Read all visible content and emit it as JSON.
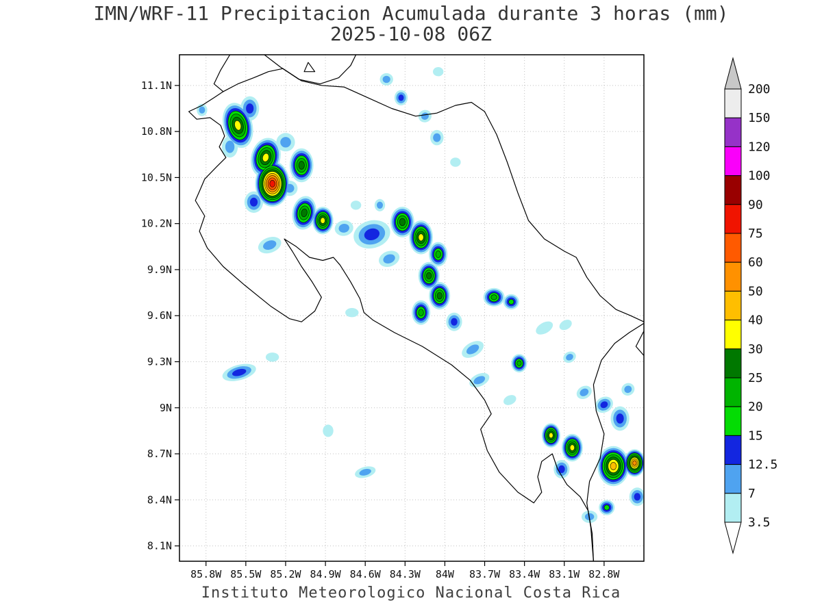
{
  "header": {
    "title_line1": "IMN/WRF-11 Precipitacion Acumulada durante 3 horas (mm)",
    "title_line2": "2025-10-08 06Z"
  },
  "footer": {
    "caption": "Instituto Meteorologico Nacional Costa Rica"
  },
  "colors": {
    "background": "#ffffff",
    "coastline": "#000000",
    "grid": "#c0c0c0",
    "frame": "#000000"
  },
  "chart_data": {
    "type": "heatmap",
    "title": "IMN/WRF-11 Precipitacion Acumulada durante 3 horas (mm)",
    "subtitle": "2025-10-08 06Z",
    "units": "mm",
    "grid": true,
    "x_axis": {
      "label": "",
      "range_lonW": [
        86.0,
        82.5
      ],
      "ticks": [
        {
          "label": "85.8W",
          "value": 85.8
        },
        {
          "label": "85.5W",
          "value": 85.5
        },
        {
          "label": "85.2W",
          "value": 85.2
        },
        {
          "label": "84.9W",
          "value": 84.9
        },
        {
          "label": "84.6W",
          "value": 84.6
        },
        {
          "label": "84.3W",
          "value": 84.3
        },
        {
          "label": "84W",
          "value": 84.0
        },
        {
          "label": "83.7W",
          "value": 83.7
        },
        {
          "label": "83.4W",
          "value": 83.4
        },
        {
          "label": "83.1W",
          "value": 83.1
        },
        {
          "label": "82.8W",
          "value": 82.8
        }
      ]
    },
    "y_axis": {
      "label": "",
      "range_lat": [
        8.0,
        11.3
      ],
      "ticks": [
        {
          "label": "11.1N",
          "value": 11.1
        },
        {
          "label": "10.8N",
          "value": 10.8
        },
        {
          "label": "10.5N",
          "value": 10.5
        },
        {
          "label": "10.2N",
          "value": 10.2
        },
        {
          "label": "9.9N",
          "value": 9.9
        },
        {
          "label": "9.6N",
          "value": 9.6
        },
        {
          "label": "9.3N",
          "value": 9.3
        },
        {
          "label": "9N",
          "value": 9.0
        },
        {
          "label": "8.7N",
          "value": 8.7
        },
        {
          "label": "8.4N",
          "value": 8.4
        },
        {
          "label": "8.1N",
          "value": 8.1
        }
      ]
    },
    "colorbar": {
      "position": "right",
      "levels": [
        3.5,
        7,
        12.5,
        15,
        20,
        25,
        30,
        40,
        50,
        60,
        75,
        90,
        100,
        120,
        150,
        200
      ],
      "band_colors": [
        "#b2eef2",
        "#4fa3f0",
        "#1326e0",
        "#04dc04",
        "#00b400",
        "#007800",
        "#ffff00",
        "#ffbe00",
        "#ff9100",
        "#ff5a00",
        "#f01400",
        "#990000",
        "#fa00fa",
        "#9632c8",
        "#ededed"
      ],
      "over_color": "#c8c8c8",
      "under_color": "#ffffff"
    },
    "coastlines": {
      "pacific_main": [
        [
          85.62,
          11.3
        ],
        [
          85.69,
          11.2
        ],
        [
          85.74,
          11.11
        ],
        [
          85.67,
          11.06
        ],
        [
          85.74,
          11.02
        ],
        [
          85.83,
          10.97
        ],
        [
          85.93,
          10.93
        ],
        [
          85.87,
          10.88
        ],
        [
          85.77,
          10.89
        ],
        [
          85.69,
          10.84
        ],
        [
          85.66,
          10.77
        ],
        [
          85.7,
          10.7
        ],
        [
          85.65,
          10.63
        ],
        [
          85.72,
          10.57
        ],
        [
          85.81,
          10.49
        ],
        [
          85.85,
          10.41
        ],
        [
          85.88,
          10.35
        ],
        [
          85.81,
          10.25
        ],
        [
          85.85,
          10.15
        ],
        [
          85.79,
          10.04
        ],
        [
          85.67,
          9.92
        ],
        [
          85.51,
          9.8
        ],
        [
          85.31,
          9.66
        ],
        [
          85.17,
          9.58
        ],
        [
          85.08,
          9.56
        ],
        [
          84.98,
          9.63
        ],
        [
          84.93,
          9.72
        ],
        [
          85.0,
          9.82
        ],
        [
          85.08,
          9.92
        ],
        [
          85.15,
          10.02
        ],
        [
          85.21,
          10.1
        ],
        [
          85.12,
          10.05
        ],
        [
          85.02,
          9.98
        ],
        [
          84.92,
          9.96
        ],
        [
          84.84,
          9.98
        ],
        [
          84.79,
          9.93
        ],
        [
          84.71,
          9.82
        ],
        [
          84.64,
          9.71
        ],
        [
          84.61,
          9.62
        ],
        [
          84.54,
          9.57
        ],
        [
          84.38,
          9.49
        ],
        [
          84.17,
          9.4
        ],
        [
          83.95,
          9.28
        ],
        [
          83.81,
          9.18
        ],
        [
          83.7,
          9.05
        ],
        [
          83.65,
          8.96
        ],
        [
          83.73,
          8.86
        ],
        [
          83.68,
          8.72
        ],
        [
          83.59,
          8.58
        ],
        [
          83.45,
          8.45
        ],
        [
          83.33,
          8.38
        ],
        [
          83.27,
          8.45
        ],
        [
          83.3,
          8.55
        ],
        [
          83.27,
          8.65
        ],
        [
          83.19,
          8.7
        ],
        [
          83.15,
          8.6
        ],
        [
          83.08,
          8.5
        ],
        [
          82.98,
          8.42
        ],
        [
          82.92,
          8.33
        ],
        [
          82.89,
          8.18
        ],
        [
          82.88,
          8.0
        ]
      ],
      "caribbean": [
        [
          83.7,
          10.93
        ],
        [
          83.61,
          10.78
        ],
        [
          83.53,
          10.6
        ],
        [
          83.45,
          10.4
        ],
        [
          83.37,
          10.22
        ],
        [
          83.25,
          10.1
        ],
        [
          83.1,
          10.02
        ],
        [
          83.01,
          9.98
        ],
        [
          82.93,
          9.85
        ],
        [
          82.83,
          9.73
        ],
        [
          82.71,
          9.64
        ],
        [
          82.6,
          9.6
        ],
        [
          82.5,
          9.56
        ]
      ],
      "nicaragua_border_river": [
        [
          85.67,
          11.06
        ],
        [
          85.56,
          11.11
        ],
        [
          85.44,
          11.15
        ],
        [
          85.33,
          11.19
        ],
        [
          85.22,
          11.21
        ],
        [
          85.08,
          11.13
        ],
        [
          84.93,
          11.1
        ],
        [
          84.76,
          11.09
        ],
        [
          84.58,
          11.02
        ],
        [
          84.4,
          10.95
        ],
        [
          84.22,
          10.9
        ],
        [
          84.06,
          10.92
        ],
        [
          83.92,
          10.97
        ],
        [
          83.8,
          10.99
        ],
        [
          83.7,
          10.93
        ]
      ],
      "lake_shore": [
        [
          85.36,
          11.3
        ],
        [
          85.24,
          11.22
        ],
        [
          85.1,
          11.14
        ],
        [
          84.94,
          11.11
        ],
        [
          84.8,
          11.15
        ],
        [
          84.71,
          11.23
        ],
        [
          84.67,
          11.3
        ]
      ],
      "lake_island": [
        [
          85.03,
          11.25
        ],
        [
          84.98,
          11.19
        ],
        [
          85.06,
          11.19
        ],
        [
          85.03,
          11.25
        ]
      ],
      "panama_border": [
        [
          82.5,
          9.55
        ],
        [
          82.61,
          9.49
        ],
        [
          82.72,
          9.42
        ],
        [
          82.82,
          9.31
        ],
        [
          82.88,
          9.15
        ],
        [
          82.86,
          8.98
        ],
        [
          82.8,
          8.83
        ],
        [
          82.83,
          8.67
        ],
        [
          82.91,
          8.52
        ],
        [
          82.93,
          8.38
        ],
        [
          82.9,
          8.22
        ],
        [
          82.88,
          8.0
        ]
      ],
      "panama_caribbean": [
        [
          82.5,
          9.5
        ],
        [
          82.56,
          9.4
        ],
        [
          82.5,
          9.34
        ]
      ]
    },
    "precip_cells_format": [
      "lonW",
      "lat",
      "rx_deg",
      "ry_deg",
      "rotate_deg",
      "max_mm"
    ],
    "precip_cells": [
      [
        85.56,
        10.84,
        0.11,
        0.15,
        -15,
        30
      ],
      [
        85.47,
        10.95,
        0.07,
        0.08,
        0,
        12.5
      ],
      [
        85.62,
        10.7,
        0.06,
        0.07,
        0,
        7
      ],
      [
        85.35,
        10.63,
        0.11,
        0.13,
        15,
        30
      ],
      [
        85.3,
        10.46,
        0.13,
        0.15,
        0,
        75
      ],
      [
        85.08,
        10.58,
        0.09,
        0.11,
        0,
        25
      ],
      [
        85.44,
        10.34,
        0.07,
        0.07,
        0,
        12.5
      ],
      [
        85.06,
        10.27,
        0.09,
        0.11,
        10,
        25
      ],
      [
        84.92,
        10.22,
        0.08,
        0.09,
        0,
        30
      ],
      [
        85.32,
        10.06,
        0.09,
        0.05,
        -20,
        7
      ],
      [
        85.2,
        10.73,
        0.07,
        0.06,
        0,
        7
      ],
      [
        85.17,
        10.43,
        0.06,
        0.05,
        0,
        7
      ],
      [
        85.83,
        10.94,
        0.04,
        0.04,
        0,
        7
      ],
      [
        84.44,
        11.14,
        0.05,
        0.04,
        0,
        7
      ],
      [
        84.33,
        11.02,
        0.05,
        0.05,
        0,
        12.5
      ],
      [
        84.15,
        10.9,
        0.05,
        0.04,
        -20,
        7
      ],
      [
        84.06,
        10.76,
        0.05,
        0.05,
        0,
        7
      ],
      [
        84.05,
        11.19,
        0.04,
        0.03,
        0,
        3.5
      ],
      [
        83.92,
        10.6,
        0.04,
        0.03,
        0,
        3.5
      ],
      [
        84.76,
        10.17,
        0.07,
        0.05,
        -10,
        7
      ],
      [
        84.55,
        10.13,
        0.14,
        0.09,
        -15,
        12.5
      ],
      [
        84.32,
        10.21,
        0.09,
        0.1,
        0,
        25
      ],
      [
        84.18,
        10.11,
        0.09,
        0.11,
        0,
        30
      ],
      [
        84.05,
        10.0,
        0.07,
        0.08,
        0,
        20
      ],
      [
        84.49,
        10.32,
        0.04,
        0.04,
        0,
        7
      ],
      [
        84.67,
        10.32,
        0.04,
        0.03,
        0,
        3.5
      ],
      [
        84.42,
        9.97,
        0.08,
        0.05,
        -20,
        7
      ],
      [
        84.12,
        9.86,
        0.08,
        0.09,
        0,
        25
      ],
      [
        84.04,
        9.73,
        0.08,
        0.09,
        0,
        25
      ],
      [
        84.18,
        9.62,
        0.07,
        0.08,
        0,
        20
      ],
      [
        83.93,
        9.56,
        0.06,
        0.06,
        0,
        12.5
      ],
      [
        84.7,
        9.62,
        0.05,
        0.03,
        0,
        3.5
      ],
      [
        83.63,
        9.72,
        0.08,
        0.06,
        0,
        20
      ],
      [
        83.5,
        9.69,
        0.06,
        0.05,
        0,
        15
      ],
      [
        83.79,
        9.38,
        0.09,
        0.045,
        -30,
        7
      ],
      [
        83.74,
        9.18,
        0.08,
        0.04,
        -25,
        7
      ],
      [
        83.44,
        9.29,
        0.06,
        0.06,
        0,
        20
      ],
      [
        83.25,
        9.52,
        0.07,
        0.035,
        -30,
        3.5
      ],
      [
        83.09,
        9.54,
        0.05,
        0.03,
        -30,
        3.5
      ],
      [
        83.06,
        9.33,
        0.05,
        0.035,
        -30,
        7
      ],
      [
        82.95,
        9.1,
        0.06,
        0.04,
        -30,
        7
      ],
      [
        82.8,
        9.02,
        0.07,
        0.05,
        -30,
        12.5
      ],
      [
        83.51,
        9.05,
        0.05,
        0.03,
        -25,
        3.5
      ],
      [
        85.55,
        9.23,
        0.13,
        0.05,
        -15,
        12.5
      ],
      [
        85.3,
        9.33,
        0.05,
        0.03,
        0,
        3.5
      ],
      [
        84.88,
        8.85,
        0.04,
        0.04,
        0,
        3.5
      ],
      [
        84.6,
        8.58,
        0.08,
        0.035,
        -15,
        7
      ],
      [
        83.2,
        8.82,
        0.07,
        0.08,
        0,
        30
      ],
      [
        83.04,
        8.74,
        0.08,
        0.09,
        0,
        30
      ],
      [
        83.12,
        8.6,
        0.06,
        0.06,
        0,
        12.5
      ],
      [
        82.73,
        8.62,
        0.12,
        0.13,
        0,
        40
      ],
      [
        82.57,
        8.64,
        0.08,
        0.09,
        0,
        50
      ],
      [
        82.68,
        8.93,
        0.07,
        0.08,
        0,
        12.5
      ],
      [
        82.62,
        9.12,
        0.05,
        0.04,
        -30,
        7
      ],
      [
        82.78,
        8.35,
        0.06,
        0.05,
        0,
        15
      ],
      [
        82.91,
        8.29,
        0.06,
        0.04,
        0,
        7
      ],
      [
        82.55,
        8.42,
        0.06,
        0.06,
        0,
        12.5
      ]
    ]
  }
}
